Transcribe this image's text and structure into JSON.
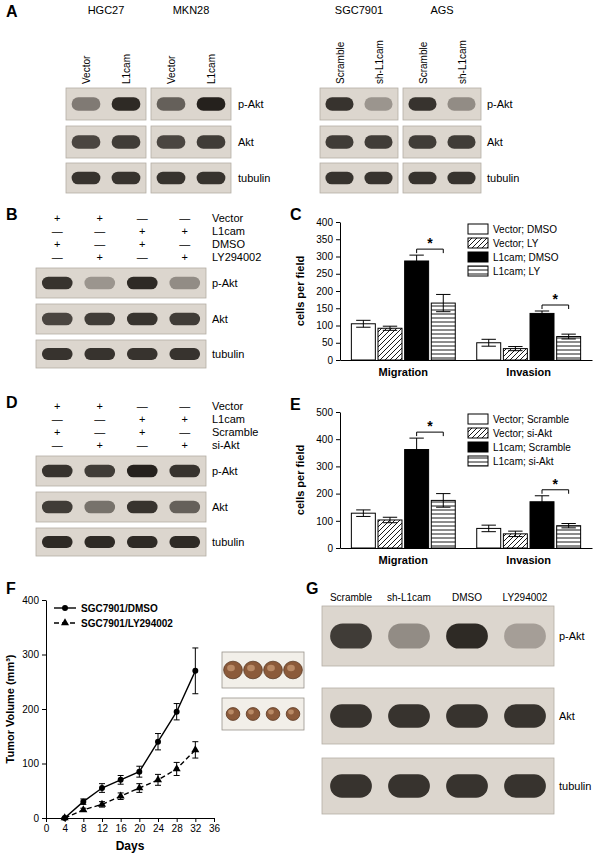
{
  "panels": {
    "A": {
      "label": "A",
      "blocks": [
        {
          "groups": [
            {
              "title": "HGC27",
              "lanes": [
                "Vector",
                "L1cam"
              ]
            },
            {
              "title": "MKN28",
              "lanes": [
                "Vector",
                "L1cam"
              ]
            }
          ],
          "rows": [
            {
              "name": "p-Akt",
              "intensity": [
                0.45,
                0.9,
                0.6,
                0.95
              ]
            },
            {
              "name": "Akt",
              "intensity": [
                0.75,
                0.8,
                0.75,
                0.8
              ]
            },
            {
              "name": "tubulin",
              "intensity": [
                0.85,
                0.85,
                0.85,
                0.85
              ]
            }
          ]
        },
        {
          "groups": [
            {
              "title": "SGC7901",
              "lanes": [
                "Scramble",
                "sh-L1cam"
              ]
            },
            {
              "title": "AGS",
              "lanes": [
                "Scramble",
                "sh-L1cam"
              ]
            }
          ],
          "rows": [
            {
              "name": "p-Akt",
              "intensity": [
                0.85,
                0.3,
                0.85,
                0.35
              ]
            },
            {
              "name": "Akt",
              "intensity": [
                0.8,
                0.8,
                0.8,
                0.8
              ]
            },
            {
              "name": "tubulin",
              "intensity": [
                0.85,
                0.85,
                0.85,
                0.85
              ]
            }
          ]
        }
      ]
    },
    "B": {
      "label": "B",
      "conditions": [
        {
          "name": "Vector",
          "signs": [
            "+",
            "+",
            "—",
            "—"
          ]
        },
        {
          "name": "L1cam",
          "signs": [
            "—",
            "—",
            "+",
            "+"
          ]
        },
        {
          "name": "DMSO",
          "signs": [
            "+",
            "—",
            "+",
            "—"
          ]
        },
        {
          "name": "LY294002",
          "signs": [
            "—",
            "+",
            "—",
            "+"
          ]
        }
      ],
      "rows": [
        {
          "name": "p-Akt",
          "intensity": [
            0.85,
            0.3,
            0.9,
            0.35
          ]
        },
        {
          "name": "Akt",
          "intensity": [
            0.75,
            0.8,
            0.85,
            0.8
          ]
        },
        {
          "name": "tubulin",
          "intensity": [
            0.85,
            0.85,
            0.85,
            0.85
          ]
        }
      ]
    },
    "D": {
      "label": "D",
      "conditions": [
        {
          "name": "Vector",
          "signs": [
            "+",
            "+",
            "—",
            "—"
          ]
        },
        {
          "name": "L1cam",
          "signs": [
            "—",
            "—",
            "+",
            "+"
          ]
        },
        {
          "name": "Scramble",
          "signs": [
            "+",
            "—",
            "+",
            "—"
          ]
        },
        {
          "name": "si-Akt",
          "signs": [
            "—",
            "+",
            "—",
            "+"
          ]
        }
      ],
      "rows": [
        {
          "name": "p-Akt",
          "intensity": [
            0.85,
            0.8,
            0.95,
            0.85
          ]
        },
        {
          "name": "Akt",
          "intensity": [
            0.8,
            0.5,
            0.85,
            0.6
          ]
        },
        {
          "name": "tubulin",
          "intensity": [
            0.9,
            0.9,
            0.9,
            0.9
          ]
        }
      ]
    },
    "G": {
      "label": "G",
      "lanes": [
        "Scramble",
        "sh-L1cam",
        "DMSO",
        "LY294002"
      ],
      "rows": [
        {
          "name": "p-Akt",
          "intensity": [
            0.8,
            0.35,
            0.9,
            0.25
          ]
        },
        {
          "name": "Akt",
          "intensity": [
            0.85,
            0.85,
            0.85,
            0.85
          ]
        },
        {
          "name": "tubulin",
          "intensity": [
            0.85,
            0.85,
            0.85,
            0.85
          ]
        }
      ]
    }
  },
  "chart_data": [
    {
      "type": "bar",
      "panel_label": "C",
      "categories": [
        "Migration",
        "Invasion"
      ],
      "series": [
        {
          "name": "Vector; DMSO",
          "color": "#ffffff",
          "values": [
            105,
            50
          ],
          "errors": [
            10,
            10
          ]
        },
        {
          "name": "Vector; LY",
          "color": "#ffffff",
          "values": [
            92,
            33
          ],
          "errors": [
            6,
            6
          ]
        },
        {
          "name": "L1cam; DMSO",
          "color": "#000000",
          "values": [
            287,
            135
          ],
          "errors": [
            17,
            7
          ]
        },
        {
          "name": "L1cam; LY",
          "color": "#ffffff",
          "values": [
            165,
            68
          ],
          "errors": [
            25,
            7
          ]
        }
      ],
      "ylim": [
        0,
        400
      ],
      "yticks": [
        0,
        50,
        100,
        150,
        200,
        250,
        300,
        350,
        400
      ],
      "y_label": "cells per field",
      "legend": "top-right",
      "annotations": [
        {
          "text": "*",
          "category": "Migration",
          "between": [
            "L1cam; DMSO",
            "L1cam; LY"
          ]
        },
        {
          "text": "*",
          "category": "Invasion",
          "between": [
            "L1cam; DMSO",
            "L1cam; LY"
          ]
        }
      ]
    },
    {
      "type": "bar",
      "panel_label": "E",
      "categories": [
        "Migration",
        "Invasion"
      ],
      "series": [
        {
          "name": "Vector; Scramble",
          "color": "#ffffff",
          "values": [
            128,
            72
          ],
          "errors": [
            12,
            12
          ]
        },
        {
          "name": "Vector; si-Akt",
          "color": "#ffffff",
          "values": [
            103,
            52
          ],
          "errors": [
            10,
            10
          ]
        },
        {
          "name": "L1cam; Scramble",
          "color": "#000000",
          "values": [
            362,
            170
          ],
          "errors": [
            42,
            22
          ]
        },
        {
          "name": "L1cam; si-Akt",
          "color": "#ffffff",
          "values": [
            175,
            82
          ],
          "errors": [
            25,
            8
          ]
        }
      ],
      "ylim": [
        0,
        500
      ],
      "yticks": [
        0,
        100,
        200,
        300,
        400,
        500
      ],
      "y_label": "cells per field",
      "legend": "top-right",
      "annotations": [
        {
          "text": "*",
          "category": "Migration",
          "between": [
            "L1cam; Scramble",
            "L1cam; si-Akt"
          ]
        },
        {
          "text": "*",
          "category": "Invasion",
          "between": [
            "L1cam; Scramble",
            "L1cam; si-Akt"
          ]
        }
      ]
    },
    {
      "type": "line",
      "panel_label": "F",
      "x": [
        4,
        8,
        12,
        16,
        20,
        24,
        28,
        32
      ],
      "series": [
        {
          "name": "SGC7901/DMSO",
          "color": "#000000",
          "marker": "circle",
          "line_style": "solid",
          "values": [
            0,
            30,
            55,
            70,
            85,
            140,
            195,
            270
          ],
          "errors": [
            0,
            5,
            8,
            8,
            10,
            15,
            15,
            42
          ]
        },
        {
          "name": "SGC7901/LY294002",
          "color": "#000000",
          "marker": "triangle",
          "line_style": "dashed",
          "values": [
            0,
            15,
            25,
            40,
            55,
            70,
            90,
            125
          ],
          "errors": [
            0,
            3,
            5,
            6,
            8,
            10,
            12,
            15
          ]
        }
      ],
      "xlim": [
        0,
        36
      ],
      "xticks": [
        0,
        4,
        8,
        12,
        16,
        20,
        24,
        28,
        32,
        36
      ],
      "ylim": [
        0,
        400
      ],
      "yticks": [
        0,
        100,
        200,
        300,
        400
      ],
      "x_label": "Days",
      "y_label": "Tumor Volume (mm³)",
      "legend": "top-left"
    }
  ]
}
